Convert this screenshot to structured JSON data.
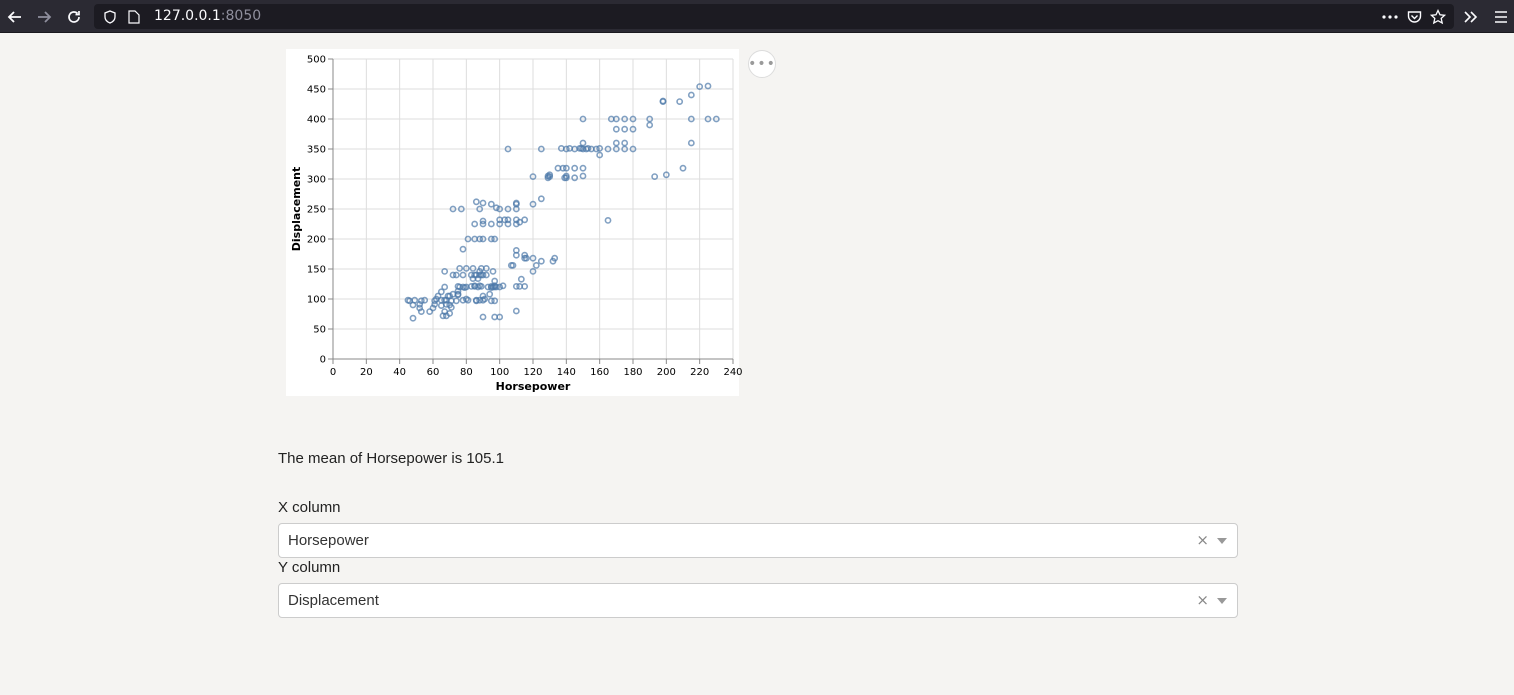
{
  "browser": {
    "url_host": "127.0.0.1",
    "url_port": ":8050",
    "icons": [
      "back-arrow-icon",
      "forward-arrow-icon",
      "reload-icon",
      "shield-icon",
      "page-icon",
      "more-dots-icon",
      "pocket-icon",
      "star-icon",
      "overflow-chevron-icon",
      "menu-icon"
    ]
  },
  "mean_text": "The mean of Horsepower is 105.1",
  "x_dropdown": {
    "label": "X column",
    "value": "Horsepower",
    "clear": "×"
  },
  "y_dropdown": {
    "label": "Y column",
    "value": "Displacement",
    "clear": "×"
  },
  "actions_label": "•••",
  "colors": {
    "point": "#4c78a8",
    "grid": "#dddddd"
  },
  "chart_data": {
    "type": "scatter",
    "xlabel": "Horsepower",
    "ylabel": "Displacement",
    "xlim": [
      0,
      240
    ],
    "ylim": [
      0,
      500
    ],
    "xticks": [
      "0",
      "20",
      "40",
      "60",
      "80",
      "100",
      "120",
      "140",
      "160",
      "180",
      "200",
      "220",
      "240"
    ],
    "yticks": [
      "0",
      "50",
      "100",
      "150",
      "200",
      "250",
      "300",
      "350",
      "400",
      "450",
      "500"
    ],
    "grid": true,
    "points": [
      [
        45,
        98
      ],
      [
        46,
        97
      ],
      [
        48,
        90
      ],
      [
        48,
        68
      ],
      [
        49,
        98
      ],
      [
        52,
        91
      ],
      [
        52,
        85
      ],
      [
        53,
        79
      ],
      [
        53,
        97
      ],
      [
        55,
        98
      ],
      [
        58,
        79
      ],
      [
        60,
        85
      ],
      [
        61,
        97
      ],
      [
        61,
        91
      ],
      [
        62,
        100
      ],
      [
        63,
        105
      ],
      [
        65,
        89
      ],
      [
        65,
        98
      ],
      [
        65,
        112
      ],
      [
        66,
        72
      ],
      [
        67,
        98
      ],
      [
        67,
        120
      ],
      [
        67,
        79
      ],
      [
        67,
        146
      ],
      [
        68,
        98
      ],
      [
        68,
        91
      ],
      [
        68,
        72
      ],
      [
        69,
        105
      ],
      [
        70,
        76
      ],
      [
        70,
        90
      ],
      [
        70,
        105
      ],
      [
        71,
        86
      ],
      [
        71,
        97
      ],
      [
        72,
        140
      ],
      [
        72,
        250
      ],
      [
        72,
        108
      ],
      [
        74,
        97
      ],
      [
        74,
        140
      ],
      [
        75,
        107
      ],
      [
        75,
        108
      ],
      [
        75,
        113
      ],
      [
        75,
        121
      ],
      [
        76,
        120
      ],
      [
        76,
        151
      ],
      [
        77,
        250
      ],
      [
        78,
        98
      ],
      [
        78,
        120
      ],
      [
        78,
        183
      ],
      [
        78,
        140
      ],
      [
        79,
        119
      ],
      [
        80,
        100
      ],
      [
        80,
        151
      ],
      [
        80,
        120
      ],
      [
        81,
        98
      ],
      [
        81,
        200
      ],
      [
        83,
        121
      ],
      [
        83,
        140
      ],
      [
        84,
        134
      ],
      [
        84,
        151
      ],
      [
        85,
        122
      ],
      [
        85,
        121
      ],
      [
        85,
        200
      ],
      [
        85,
        140
      ],
      [
        85,
        225
      ],
      [
        86,
        140
      ],
      [
        86,
        98
      ],
      [
        86,
        97
      ],
      [
        86,
        262
      ],
      [
        87,
        120
      ],
      [
        87,
        134
      ],
      [
        88,
        98
      ],
      [
        88,
        140
      ],
      [
        88,
        122
      ],
      [
        88,
        200
      ],
      [
        88,
        146
      ],
      [
        88,
        250
      ],
      [
        89,
        151
      ],
      [
        89,
        140
      ],
      [
        89,
        121
      ],
      [
        90,
        98
      ],
      [
        90,
        140
      ],
      [
        90,
        105
      ],
      [
        90,
        200
      ],
      [
        90,
        230
      ],
      [
        90,
        225
      ],
      [
        90,
        260
      ],
      [
        90,
        70
      ],
      [
        91,
        100
      ],
      [
        92,
        140
      ],
      [
        92,
        151
      ],
      [
        93,
        120
      ],
      [
        94,
        108
      ],
      [
        95,
        119
      ],
      [
        95,
        121
      ],
      [
        95,
        97
      ],
      [
        95,
        200
      ],
      [
        95,
        225
      ],
      [
        95,
        258
      ],
      [
        96,
        120
      ],
      [
        96,
        146
      ],
      [
        97,
        97
      ],
      [
        97,
        200
      ],
      [
        97,
        120
      ],
      [
        97,
        70
      ],
      [
        97,
        122
      ],
      [
        97,
        130
      ],
      [
        98,
        120
      ],
      [
        98,
        252
      ],
      [
        100,
        250
      ],
      [
        100,
        225
      ],
      [
        100,
        232
      ],
      [
        100,
        120
      ],
      [
        100,
        70
      ],
      [
        102,
        122
      ],
      [
        103,
        232
      ],
      [
        105,
        225
      ],
      [
        105,
        250
      ],
      [
        105,
        350
      ],
      [
        105,
        232
      ],
      [
        107,
        156
      ],
      [
        108,
        156
      ],
      [
        110,
        225
      ],
      [
        110,
        232
      ],
      [
        110,
        250
      ],
      [
        110,
        258
      ],
      [
        110,
        121
      ],
      [
        110,
        181
      ],
      [
        110,
        260
      ],
      [
        110,
        173
      ],
      [
        110,
        80
      ],
      [
        112,
        121
      ],
      [
        112,
        228
      ],
      [
        113,
        133
      ],
      [
        115,
        121
      ],
      [
        115,
        173
      ],
      [
        115,
        232
      ],
      [
        115,
        168
      ],
      [
        116,
        168
      ],
      [
        120,
        146
      ],
      [
        120,
        168
      ],
      [
        120,
        304
      ],
      [
        120,
        258
      ],
      [
        122,
        156
      ],
      [
        125,
        350
      ],
      [
        125,
        163
      ],
      [
        125,
        267
      ],
      [
        129,
        305
      ],
      [
        129,
        302
      ],
      [
        130,
        304
      ],
      [
        130,
        307
      ],
      [
        132,
        163
      ],
      [
        133,
        168
      ],
      [
        135,
        318
      ],
      [
        137,
        351
      ],
      [
        138,
        318
      ],
      [
        139,
        302
      ],
      [
        140,
        302
      ],
      [
        140,
        305
      ],
      [
        140,
        318
      ],
      [
        140,
        350
      ],
      [
        142,
        351
      ],
      [
        145,
        318
      ],
      [
        145,
        350
      ],
      [
        145,
        302
      ],
      [
        148,
        351
      ],
      [
        149,
        351
      ],
      [
        150,
        400
      ],
      [
        150,
        318
      ],
      [
        150,
        305
      ],
      [
        150,
        350
      ],
      [
        150,
        360
      ],
      [
        152,
        350
      ],
      [
        153,
        351
      ],
      [
        155,
        350
      ],
      [
        158,
        350
      ],
      [
        160,
        340
      ],
      [
        160,
        351
      ],
      [
        165,
        350
      ],
      [
        165,
        231
      ],
      [
        167,
        400
      ],
      [
        170,
        350
      ],
      [
        170,
        360
      ],
      [
        170,
        383
      ],
      [
        170,
        400
      ],
      [
        175,
        350
      ],
      [
        175,
        383
      ],
      [
        175,
        360
      ],
      [
        175,
        400
      ],
      [
        180,
        350
      ],
      [
        180,
        383
      ],
      [
        180,
        400
      ],
      [
        190,
        390
      ],
      [
        190,
        400
      ],
      [
        193,
        304
      ],
      [
        198,
        429
      ],
      [
        198,
        430
      ],
      [
        200,
        307
      ],
      [
        208,
        429
      ],
      [
        210,
        318
      ],
      [
        215,
        360
      ],
      [
        215,
        440
      ],
      [
        215,
        400
      ],
      [
        220,
        454
      ],
      [
        225,
        455
      ],
      [
        225,
        400
      ],
      [
        230,
        400
      ]
    ]
  }
}
